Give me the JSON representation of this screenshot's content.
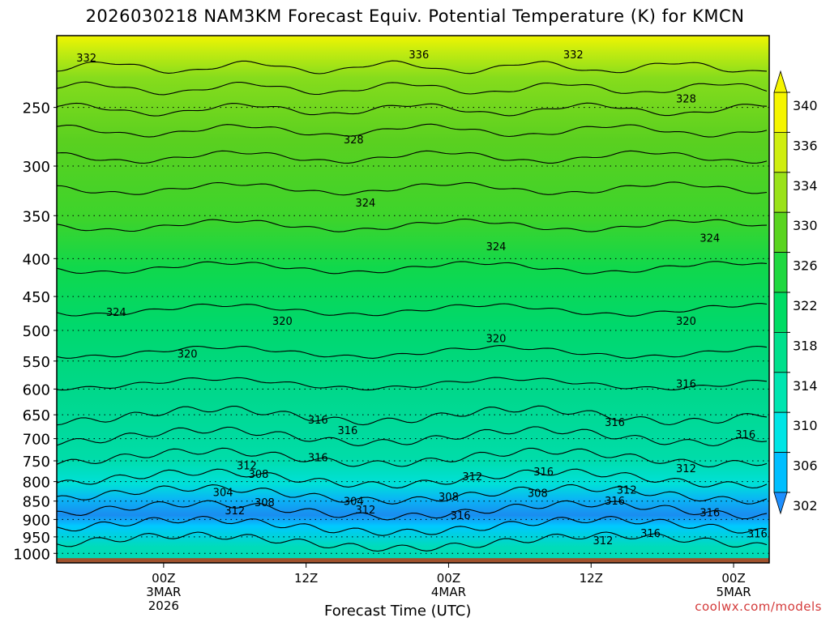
{
  "title": "2026030218 NAM3KM Forecast Equiv. Potential Temperature (K) for KMCN",
  "credit": "coolwx.com/models",
  "chart_data": {
    "type": "heatmap",
    "title": "2026030218 NAM3KM Forecast Equiv. Potential Temperature (K) for KMCN",
    "xlabel": "Forecast Time (UTC)",
    "ylabel": "",
    "y_scale": "log",
    "ylim": [
      1030,
      200
    ],
    "xlim_hours": [
      -9,
      51
    ],
    "x_ticks": [
      {
        "hour": 0,
        "lines": [
          "00Z",
          "3MAR",
          "2026"
        ]
      },
      {
        "hour": 12,
        "lines": [
          "12Z"
        ]
      },
      {
        "hour": 24,
        "lines": [
          "00Z",
          "4MAR"
        ]
      },
      {
        "hour": 36,
        "lines": [
          "12Z"
        ]
      },
      {
        "hour": 48,
        "lines": [
          "00Z",
          "5MAR"
        ]
      }
    ],
    "y_ticks": [
      250,
      300,
      350,
      400,
      450,
      500,
      550,
      600,
      650,
      700,
      750,
      800,
      850,
      900,
      950,
      1000
    ],
    "grid": true,
    "surface_pressure": 1015,
    "colorbar": {
      "ticks": [
        302,
        306,
        310,
        314,
        318,
        322,
        326,
        330,
        334,
        336,
        340
      ],
      "colors": [
        "#1e90ff",
        "#00bfff",
        "#00e5e5",
        "#00e5b0",
        "#00e08c",
        "#00dc64",
        "#20d840",
        "#5ad420",
        "#9ae21a",
        "#cfee10",
        "#f5f500"
      ],
      "extend": "both"
    },
    "contour_labels": [
      {
        "text": "332",
        "hour": -6.5,
        "p": 214
      },
      {
        "text": "336",
        "hour": 21.5,
        "p": 212
      },
      {
        "text": "332",
        "hour": 34.5,
        "p": 212
      },
      {
        "text": "328",
        "hour": 44,
        "p": 243
      },
      {
        "text": "328",
        "hour": 16,
        "p": 276
      },
      {
        "text": "324",
        "hour": 17,
        "p": 336
      },
      {
        "text": "324",
        "hour": 28,
        "p": 385
      },
      {
        "text": "324",
        "hour": 46,
        "p": 375
      },
      {
        "text": "324",
        "hour": -4,
        "p": 472
      },
      {
        "text": "320",
        "hour": 10,
        "p": 485
      },
      {
        "text": "320",
        "hour": 28,
        "p": 512
      },
      {
        "text": "320",
        "hour": 44,
        "p": 485
      },
      {
        "text": "320",
        "hour": 2,
        "p": 537
      },
      {
        "text": "316",
        "hour": 44,
        "p": 590
      },
      {
        "text": "316",
        "hour": 13,
        "p": 660
      },
      {
        "text": "316",
        "hour": 15.5,
        "p": 682
      },
      {
        "text": "316",
        "hour": 38,
        "p": 665
      },
      {
        "text": "316",
        "hour": 49,
        "p": 690
      },
      {
        "text": "316",
        "hour": 13,
        "p": 742
      },
      {
        "text": "312",
        "hour": 7,
        "p": 760
      },
      {
        "text": "308",
        "hour": 8,
        "p": 781
      },
      {
        "text": "312",
        "hour": 26,
        "p": 787
      },
      {
        "text": "316",
        "hour": 32,
        "p": 775
      },
      {
        "text": "312",
        "hour": 44,
        "p": 767
      },
      {
        "text": "304",
        "hour": 5,
        "p": 826
      },
      {
        "text": "308",
        "hour": 8.5,
        "p": 853
      },
      {
        "text": "304",
        "hour": 16,
        "p": 850
      },
      {
        "text": "308",
        "hour": 24,
        "p": 838
      },
      {
        "text": "308",
        "hour": 31.5,
        "p": 828
      },
      {
        "text": "312",
        "hour": 39,
        "p": 820
      },
      {
        "text": "316",
        "hour": 38,
        "p": 848
      },
      {
        "text": "312",
        "hour": 6,
        "p": 875
      },
      {
        "text": "312",
        "hour": 17,
        "p": 872
      },
      {
        "text": "316",
        "hour": 25,
        "p": 888
      },
      {
        "text": "316",
        "hour": 46,
        "p": 880
      },
      {
        "text": "316",
        "hour": 41,
        "p": 938
      },
      {
        "text": "312",
        "hour": 37,
        "p": 960
      },
      {
        "text": "316",
        "hour": 50,
        "p": 940
      }
    ]
  }
}
